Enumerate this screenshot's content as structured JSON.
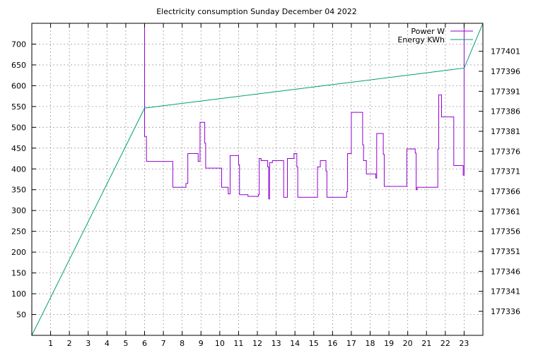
{
  "chart_data": {
    "type": "line",
    "title": "Electricity consumption Sunday December 04 2022",
    "xlabel": "",
    "ylabel": "",
    "xlim": [
      0,
      24
    ],
    "ylim": [
      0,
      750
    ],
    "y2lim": [
      177330,
      177408
    ],
    "x_ticks": [
      "1",
      "2",
      "3",
      "4",
      "5",
      "6",
      "7",
      "8",
      "9",
      "10",
      "11",
      "12",
      "13",
      "14",
      "15",
      "16",
      "17",
      "18",
      "19",
      "20",
      "21",
      "22",
      "23"
    ],
    "y_ticks": [
      "50",
      "100",
      "150",
      "200",
      "250",
      "300",
      "350",
      "400",
      "450",
      "500",
      "550",
      "600",
      "650",
      "700"
    ],
    "y2_ticks": [
      "177336",
      "177341",
      "177346",
      "177351",
      "177356",
      "177361",
      "177366",
      "177371",
      "177376",
      "177381",
      "177386",
      "177391",
      "177396",
      "177401"
    ],
    "grid": true,
    "legend_position": "top-right",
    "series": [
      {
        "name": "Power W",
        "axis": "y1",
        "color": "#9400d3",
        "points": [
          [
            6.0,
            750
          ],
          [
            6.0,
            478
          ],
          [
            6.1,
            478
          ],
          [
            6.1,
            418
          ],
          [
            7.5,
            418
          ],
          [
            7.5,
            356
          ],
          [
            8.2,
            356
          ],
          [
            8.2,
            365
          ],
          [
            8.3,
            365
          ],
          [
            8.3,
            437
          ],
          [
            8.85,
            437
          ],
          [
            8.85,
            418
          ],
          [
            8.95,
            418
          ],
          [
            8.95,
            512
          ],
          [
            9.2,
            512
          ],
          [
            9.2,
            462
          ],
          [
            9.25,
            462
          ],
          [
            9.25,
            402
          ],
          [
            10.1,
            402
          ],
          [
            10.1,
            356
          ],
          [
            10.45,
            356
          ],
          [
            10.45,
            340
          ],
          [
            10.55,
            340
          ],
          [
            10.55,
            432
          ],
          [
            11.0,
            432
          ],
          [
            11.0,
            410
          ],
          [
            11.05,
            410
          ],
          [
            11.05,
            338
          ],
          [
            11.5,
            338
          ],
          [
            11.5,
            334
          ],
          [
            12.05,
            334
          ],
          [
            12.05,
            338
          ],
          [
            12.1,
            338
          ],
          [
            12.1,
            425
          ],
          [
            12.2,
            425
          ],
          [
            12.2,
            420
          ],
          [
            12.55,
            420
          ],
          [
            12.55,
            405
          ],
          [
            12.6,
            405
          ],
          [
            12.6,
            328
          ],
          [
            12.65,
            328
          ],
          [
            12.65,
            415
          ],
          [
            12.8,
            415
          ],
          [
            12.8,
            420
          ],
          [
            13.4,
            420
          ],
          [
            13.4,
            332
          ],
          [
            13.6,
            332
          ],
          [
            13.6,
            425
          ],
          [
            13.95,
            425
          ],
          [
            13.95,
            437
          ],
          [
            14.1,
            437
          ],
          [
            14.1,
            405
          ],
          [
            14.15,
            405
          ],
          [
            14.15,
            332
          ],
          [
            15.2,
            332
          ],
          [
            15.2,
            405
          ],
          [
            15.35,
            405
          ],
          [
            15.35,
            420
          ],
          [
            15.65,
            420
          ],
          [
            15.65,
            395
          ],
          [
            15.7,
            395
          ],
          [
            15.7,
            332
          ],
          [
            16.75,
            332
          ],
          [
            16.75,
            345
          ],
          [
            16.8,
            345
          ],
          [
            16.8,
            437
          ],
          [
            17.0,
            437
          ],
          [
            17.0,
            536
          ],
          [
            17.6,
            536
          ],
          [
            17.6,
            458
          ],
          [
            17.65,
            458
          ],
          [
            17.65,
            420
          ],
          [
            17.8,
            420
          ],
          [
            17.8,
            388
          ],
          [
            18.3,
            388
          ],
          [
            18.3,
            378
          ],
          [
            18.35,
            378
          ],
          [
            18.35,
            485
          ],
          [
            18.7,
            485
          ],
          [
            18.7,
            435
          ],
          [
            18.75,
            435
          ],
          [
            18.75,
            358
          ],
          [
            19.95,
            358
          ],
          [
            19.95,
            448
          ],
          [
            20.4,
            448
          ],
          [
            20.4,
            438
          ],
          [
            20.45,
            438
          ],
          [
            20.45,
            350
          ],
          [
            20.5,
            350
          ],
          [
            20.5,
            356
          ],
          [
            21.6,
            356
          ],
          [
            21.6,
            448
          ],
          [
            21.65,
            448
          ],
          [
            21.65,
            578
          ],
          [
            21.8,
            578
          ],
          [
            21.8,
            525
          ],
          [
            22.45,
            525
          ],
          [
            22.45,
            408
          ],
          [
            22.95,
            408
          ],
          [
            22.95,
            385
          ],
          [
            23.0,
            385
          ],
          [
            23.0,
            750
          ]
        ]
      },
      {
        "name": "Energy KWh",
        "axis": "y2",
        "color": "#009e73",
        "points": [
          [
            0,
            177330.0
          ],
          [
            6.0,
            177386.8
          ],
          [
            23.0,
            177396.8
          ],
          [
            24.0,
            177408.0
          ]
        ]
      }
    ]
  }
}
